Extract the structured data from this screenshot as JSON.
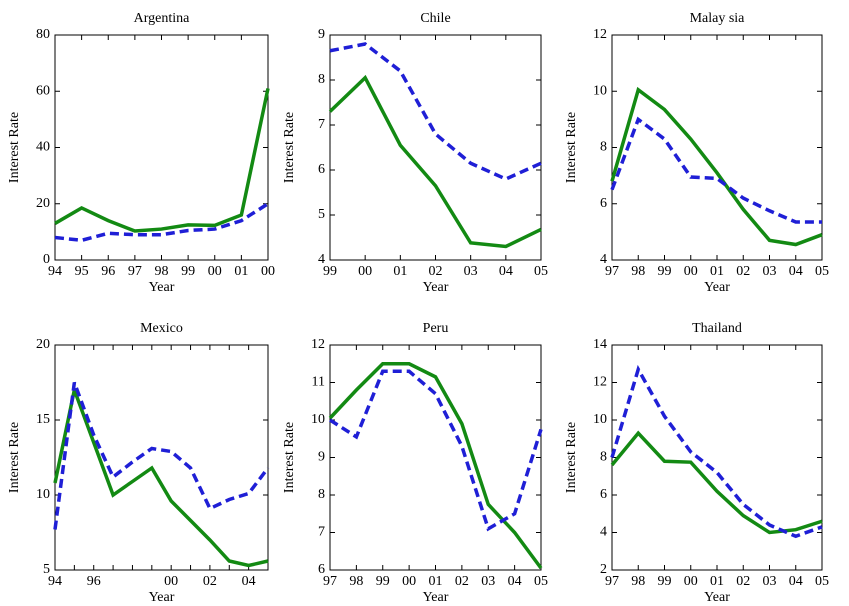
{
  "chart_data": [
    {
      "type": "line",
      "title": "Argentina",
      "xlabel": "Year",
      "ylabel": "Interest Rate",
      "categories": [
        "94",
        "95",
        "96",
        "97",
        "98",
        "99",
        "00",
        "01",
        "00"
      ],
      "ylim": [
        0,
        80
      ],
      "yticks": [
        0,
        20,
        40,
        60,
        80
      ],
      "series": [
        {
          "color": "#138a13",
          "style": "solid",
          "values": [
            13,
            18.5,
            14,
            10.3,
            11,
            12.5,
            12.3,
            16,
            61
          ]
        },
        {
          "color": "#1f1fd6",
          "style": "dashed",
          "values": [
            8,
            7,
            9.5,
            9,
            9,
            10.5,
            11,
            14,
            20
          ]
        }
      ]
    },
    {
      "type": "line",
      "title": "Chile",
      "xlabel": "Year",
      "ylabel": "Interest Rate",
      "categories": [
        "99",
        "00",
        "01",
        "02",
        "03",
        "04",
        "05"
      ],
      "ylim": [
        4,
        9
      ],
      "yticks": [
        4,
        5,
        6,
        7,
        8,
        9
      ],
      "series": [
        {
          "color": "#138a13",
          "style": "solid",
          "values": [
            7.3,
            8.05,
            6.55,
            5.65,
            4.38,
            4.3,
            4.68
          ]
        },
        {
          "color": "#1f1fd6",
          "style": "dashed",
          "values": [
            8.65,
            8.8,
            8.2,
            6.8,
            6.15,
            5.8,
            6.15
          ]
        }
      ]
    },
    {
      "type": "line",
      "title": "Malay sia",
      "xlabel": "Year",
      "ylabel": "Interest Rate",
      "categories": [
        "97",
        "98",
        "99",
        "00",
        "01",
        "02",
        "03",
        "04",
        "05"
      ],
      "ylim": [
        4,
        12
      ],
      "yticks": [
        4,
        6,
        8,
        10,
        12
      ],
      "series": [
        {
          "color": "#138a13",
          "style": "solid",
          "values": [
            6.8,
            10.05,
            9.35,
            8.3,
            7.1,
            5.8,
            4.7,
            4.55,
            4.9
          ]
        },
        {
          "color": "#1f1fd6",
          "style": "dashed",
          "values": [
            6.5,
            9,
            8.3,
            6.95,
            6.9,
            6.2,
            5.75,
            5.35,
            5.35
          ]
        }
      ]
    },
    {
      "type": "line",
      "title": "Mexico",
      "xlabel": "Year",
      "ylabel": "Interest Rate",
      "categories": [
        "94",
        null,
        "96",
        null,
        null,
        null,
        "00",
        null,
        "02",
        null,
        "04",
        null
      ],
      "ylim": [
        5,
        20
      ],
      "yticks": [
        5,
        10,
        15,
        20
      ],
      "series": [
        {
          "color": "#138a13",
          "style": "solid",
          "values": [
            10.8,
            17,
            13.5,
            10,
            10.9,
            11.8,
            9.6,
            8.3,
            7,
            5.6,
            5.3,
            5.6
          ]
        },
        {
          "color": "#1f1fd6",
          "style": "dashed",
          "values": [
            7.7,
            17.5,
            14,
            11.2,
            12.2,
            13.1,
            12.9,
            11.8,
            9.1,
            9.7,
            10.1,
            11.8
          ]
        }
      ]
    },
    {
      "type": "line",
      "title": "Peru",
      "xlabel": "Year",
      "ylabel": "Interest Rate",
      "categories": [
        "97",
        "98",
        "99",
        "00",
        "01",
        "02",
        "03",
        "04",
        "05"
      ],
      "ylim": [
        6,
        12
      ],
      "yticks": [
        6,
        7,
        8,
        9,
        10,
        11,
        12
      ],
      "series": [
        {
          "color": "#138a13",
          "style": "solid",
          "values": [
            10.05,
            10.8,
            11.5,
            11.5,
            11.15,
            9.9,
            7.75,
            7.0,
            6.05
          ]
        },
        {
          "color": "#1f1fd6",
          "style": "dashed",
          "values": [
            10,
            9.55,
            11.3,
            11.3,
            10.7,
            9.3,
            7.1,
            7.5,
            9.75
          ]
        }
      ]
    },
    {
      "type": "line",
      "title": "Thailand",
      "xlabel": "Year",
      "ylabel": "Interest Rate",
      "categories": [
        "97",
        "98",
        "99",
        "00",
        "01",
        "02",
        "03",
        "04",
        "05"
      ],
      "ylim": [
        2,
        14
      ],
      "yticks": [
        2,
        4,
        6,
        8,
        10,
        12,
        14
      ],
      "series": [
        {
          "color": "#138a13",
          "style": "solid",
          "values": [
            7.6,
            9.3,
            7.8,
            7.75,
            6.2,
            4.9,
            4,
            4.15,
            4.6
          ]
        },
        {
          "color": "#1f1fd6",
          "style": "dashed",
          "values": [
            8,
            12.7,
            10.2,
            8.3,
            7.2,
            5.5,
            4.4,
            3.8,
            4.3
          ]
        }
      ]
    }
  ]
}
